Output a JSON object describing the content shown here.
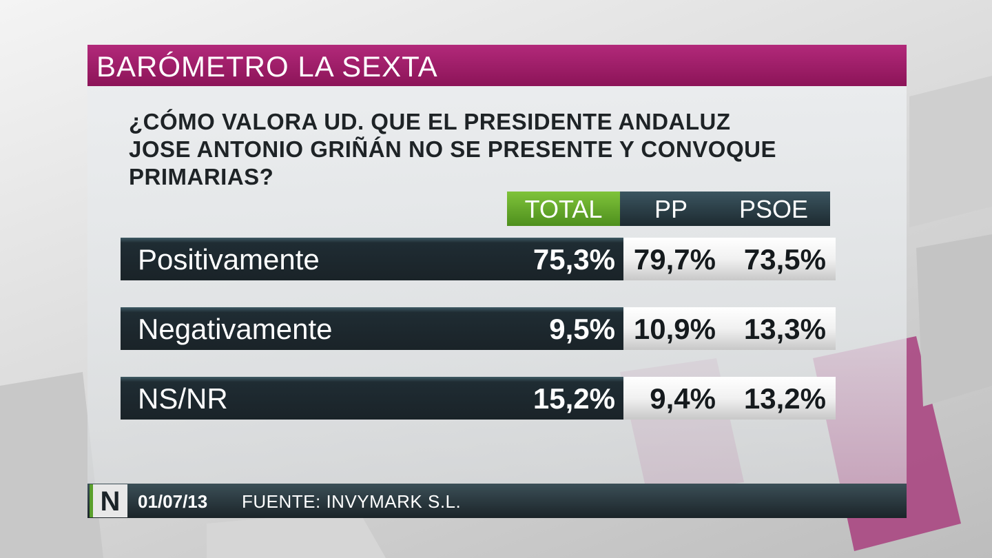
{
  "header": {
    "title": "BARÓMETRO LA SEXTA"
  },
  "question": {
    "lines": [
      "¿CÓMO VALORA UD. QUE EL PRESIDENTE ANDALUZ",
      "JOSE ANTONIO GRIÑÁN NO SE PRESENTE Y CONVOQUE",
      "PRIMARIAS?"
    ]
  },
  "table": {
    "columns": [
      "TOTAL",
      "PP",
      "PSOE"
    ],
    "rows": [
      [
        "Positivamente",
        "75,3%",
        "79,7%",
        "73,5%"
      ],
      [
        "Negativamente",
        "9,5%",
        "10,9%",
        "13,3%"
      ],
      [
        "NS/NR",
        "15,2%",
        "9,4%",
        "13,2%"
      ]
    ]
  },
  "footer": {
    "logo": "N",
    "date": "01/07/13",
    "source": "FUENTE: INVYMARK S.L."
  }
}
